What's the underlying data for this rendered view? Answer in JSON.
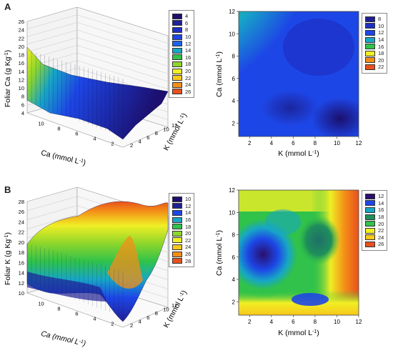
{
  "panels": [
    {
      "letter": "A"
    },
    {
      "letter": "B"
    }
  ],
  "chart_data": [
    {
      "id": "A-surface",
      "type": "surface3d",
      "zlabel": "Foliar Ca (g Kg",
      "zlabel_sup": "-1",
      "zlabel_end": ")",
      "xlabel": "Ca (mmol L",
      "xlabel_sup": "-1",
      "xlabel_end": ")",
      "ylabel": "K (mmol L",
      "ylabel_sup": "-1",
      "ylabel_end": ")",
      "z_ticks": [
        "4",
        "6",
        "8",
        "10",
        "12",
        "14",
        "16",
        "18",
        "20",
        "22",
        "24",
        "26"
      ],
      "x_ticks": [
        "10",
        "8",
        "6",
        "4",
        "2"
      ],
      "y_ticks": [
        "2",
        "4",
        "6",
        "8",
        "10",
        "12"
      ],
      "legend": [
        "4",
        "6",
        "8",
        "10",
        "12",
        "14",
        "16",
        "18",
        "20",
        "22",
        "24",
        "26"
      ],
      "legend_colors": [
        "#1c0f6e",
        "#1f1f96",
        "#1e2fc4",
        "#1d46e6",
        "#1a62f0",
        "#17a6c6",
        "#30c24a",
        "#8ed62c",
        "#f0ef25",
        "#f8c81b",
        "#f38f17",
        "#e8511d"
      ]
    },
    {
      "id": "A-contour",
      "type": "heatmap",
      "xlabel": "K (mmol L",
      "xlabel_sup": "-1",
      "xlabel_end": ")",
      "ylabel": "Ca (mmol L",
      "ylabel_sup": "-1",
      "ylabel_end": ")",
      "x_ticks": [
        "2",
        "4",
        "6",
        "8",
        "10",
        "12"
      ],
      "y_ticks": [
        "2",
        "4",
        "6",
        "8",
        "10",
        "12"
      ],
      "xlim": [
        1,
        12
      ],
      "ylim": [
        0.8,
        12
      ],
      "legend": [
        "8",
        "10",
        "12",
        "14",
        "16",
        "18",
        "20",
        "22"
      ],
      "legend_colors": [
        "#1f1f96",
        "#1e2fc4",
        "#1d46e6",
        "#17a6c6",
        "#30c24a",
        "#f0ef25",
        "#f38f17",
        "#e8511d"
      ]
    },
    {
      "id": "B-surface",
      "type": "surface3d",
      "zlabel": "Foliar K (g Kg",
      "zlabel_sup": "-1",
      "zlabel_end": ")",
      "xlabel": "Ca (mmol L",
      "xlabel_sup": "-1",
      "xlabel_end": ")",
      "ylabel": "K (mmol L",
      "ylabel_sup": "-1",
      "ylabel_end": ")",
      "z_ticks": [
        "10",
        "12",
        "14",
        "16",
        "18",
        "20",
        "22",
        "24",
        "26",
        "28"
      ],
      "x_ticks": [
        "10",
        "8",
        "6",
        "4",
        "2"
      ],
      "y_ticks": [
        "2",
        "4",
        "6",
        "8",
        "10",
        "12"
      ],
      "legend": [
        "10",
        "12",
        "14",
        "16",
        "18",
        "20",
        "22",
        "24",
        "26",
        "28"
      ],
      "legend_colors": [
        "#1c0f6e",
        "#1f1f96",
        "#1d46e6",
        "#17a6c6",
        "#30c24a",
        "#8ed62c",
        "#f0ef25",
        "#f8c81b",
        "#f38f17",
        "#e8511d"
      ]
    },
    {
      "id": "B-contour",
      "type": "heatmap",
      "xlabel": "K (mmol L",
      "xlabel_sup": "-1",
      "xlabel_end": ")",
      "ylabel": "Ca (mmol L",
      "ylabel_sup": "-1",
      "ylabel_end": ")",
      "x_ticks": [
        "2",
        "4",
        "6",
        "8",
        "10",
        "12"
      ],
      "y_ticks": [
        "2",
        "4",
        "6",
        "8",
        "10",
        "12"
      ],
      "xlim": [
        1,
        12
      ],
      "ylim": [
        0.8,
        12
      ],
      "legend": [
        "12",
        "14",
        "16",
        "18",
        "20",
        "22",
        "24",
        "26"
      ],
      "legend_colors": [
        "#2a0f6e",
        "#1d46e6",
        "#17a6c6",
        "#1f8f5a",
        "#30c24a",
        "#f0ef25",
        "#f8c81b",
        "#e8511d"
      ]
    }
  ]
}
